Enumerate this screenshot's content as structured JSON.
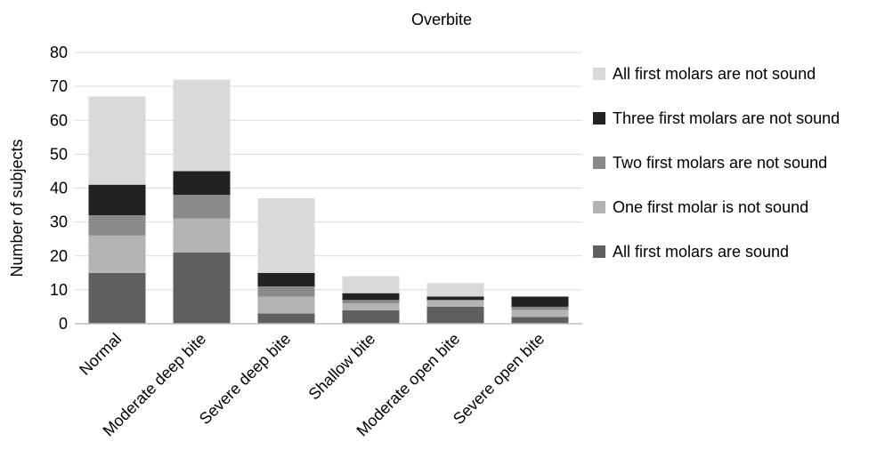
{
  "chart_data": {
    "type": "bar",
    "stacked": true,
    "title": "Overbite",
    "xlabel": "",
    "ylabel": "Number of subjects",
    "ylim": [
      0,
      80
    ],
    "yticks": [
      0,
      10,
      20,
      30,
      40,
      50,
      60,
      70,
      80
    ],
    "grid": true,
    "legend_position": "right",
    "categories": [
      "Normal",
      "Moderate deep bite",
      "Severe deep bite",
      "Shallow bite",
      "Moderate open bite",
      "Severe open bite"
    ],
    "series": [
      {
        "name": "All first molars are sound",
        "color": "#5f5f5f",
        "values": [
          15,
          21,
          3,
          4,
          5,
          2
        ]
      },
      {
        "name": "One first molar is not sound",
        "color": "#b3b3b3",
        "values": [
          11,
          10,
          5,
          2,
          2,
          2
        ]
      },
      {
        "name": "Two first molars are not sound",
        "color": "#8a8a8a",
        "values": [
          6,
          7,
          3,
          1,
          0,
          1
        ]
      },
      {
        "name": "Three first molars are not sound",
        "color": "#222222",
        "values": [
          9,
          7,
          4,
          2,
          1,
          3
        ]
      },
      {
        "name": "All first molars are not sound",
        "color": "#d9d9d9",
        "values": [
          26,
          27,
          22,
          5,
          4,
          0
        ]
      }
    ]
  }
}
